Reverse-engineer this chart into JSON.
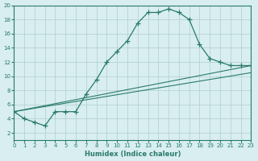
{
  "xlabel": "Humidex (Indice chaleur)",
  "ylabel": "",
  "bg_color": "#d8eef0",
  "grid_color": "#b0cdd0",
  "line_color": "#2a7a6a",
  "xlim": [
    0,
    23
  ],
  "ylim": [
    1,
    20
  ],
  "xticks": [
    0,
    1,
    2,
    3,
    4,
    5,
    6,
    7,
    8,
    9,
    10,
    11,
    12,
    13,
    14,
    15,
    16,
    17,
    18,
    19,
    20,
    21,
    22,
    23
  ],
  "yticks": [
    2,
    4,
    6,
    8,
    10,
    12,
    14,
    16,
    18,
    20
  ],
  "line1_x": [
    0,
    1,
    2,
    3,
    4,
    5,
    6,
    7,
    8,
    9,
    10,
    11,
    12,
    13,
    14,
    15,
    16,
    17,
    18,
    19,
    20,
    21,
    22,
    23
  ],
  "line1_y": [
    5,
    4,
    3.5,
    3,
    5,
    5,
    5,
    7.5,
    9.5,
    12,
    13.5,
    15,
    17.5,
    19,
    19,
    19.5,
    19,
    18,
    14.5,
    12.5,
    12,
    11.5,
    11.5,
    11.5
  ],
  "line2_x": [
    0,
    23
  ],
  "line2_y": [
    5,
    11.5
  ],
  "line3_x": [
    0,
    23
  ],
  "line3_y": [
    5,
    10.5
  ]
}
